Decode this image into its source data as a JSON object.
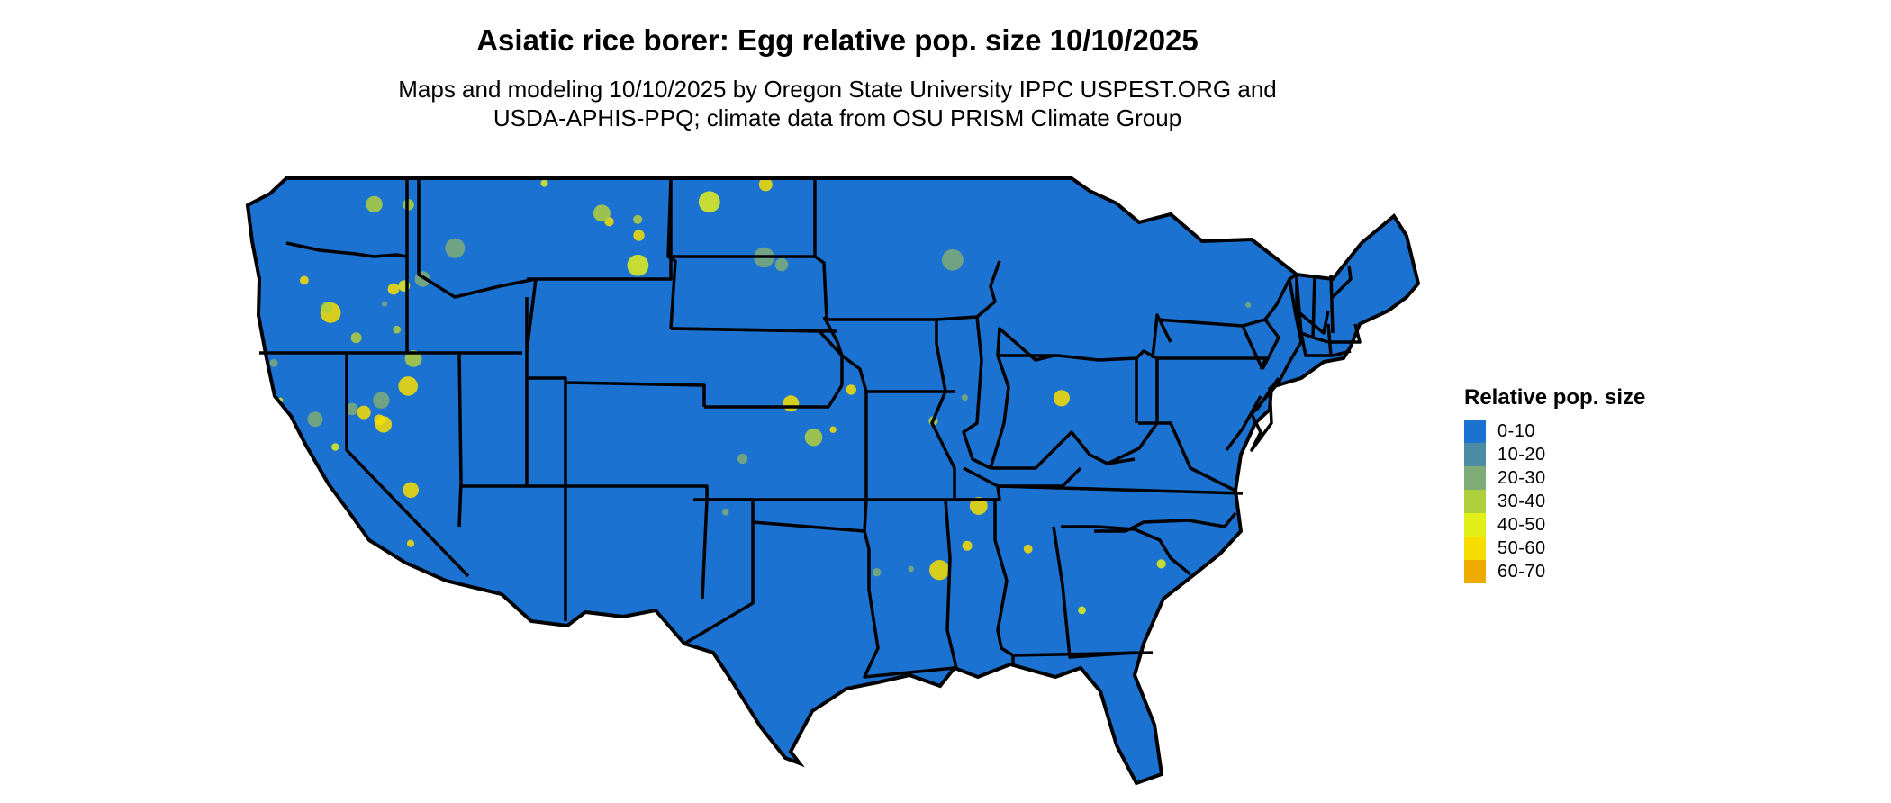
{
  "map": {
    "title": "Asiatic rice borer: Egg relative pop. size 10/10/2025",
    "subtitle_line1": "Maps and modeling 10/10/2025 by Oregon State University IPPC USPEST.ORG and",
    "subtitle_line2": "USDA-APHIS-PPQ; climate data from OSU PRISM Climate Group",
    "background_class_color": "#1c72d0",
    "state_border_color": "#000000"
  },
  "legend": {
    "title": "Relative pop. size",
    "items": [
      {
        "label": "0-10",
        "color": "#1c72d0"
      },
      {
        "label": "10-20",
        "color": "#4b8ca4"
      },
      {
        "label": "20-30",
        "color": "#7fab77"
      },
      {
        "label": "30-40",
        "color": "#b0cf3c"
      },
      {
        "label": "40-50",
        "color": "#e2ef1a"
      },
      {
        "label": "50-60",
        "color": "#f8dd00"
      },
      {
        "label": "60-70",
        "color": "#efaa00"
      }
    ]
  }
}
